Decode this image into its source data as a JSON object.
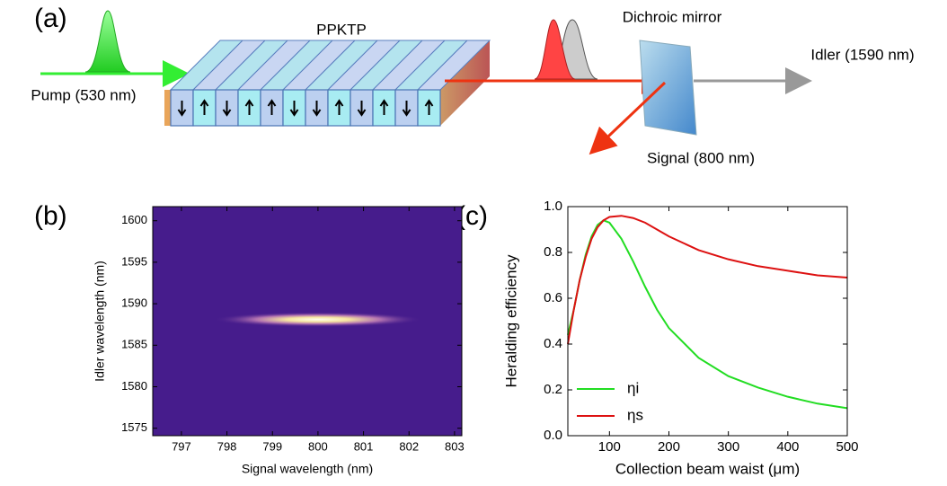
{
  "panel_labels": [
    "(a)",
    "(b)",
    "(c)"
  ],
  "diagram": {
    "crystal": "PPKTP",
    "pump": "Pump (530 nm)",
    "mirror": "Dichroic mirror",
    "idler": "Idler (1590 nm)",
    "signal": "Signal (800 nm)"
  },
  "chart_data": [
    {
      "type": "heatmap",
      "xlabel": "Signal wavelength (nm)",
      "ylabel": "Idler wavelength (nm)",
      "xlim": [
        796.37,
        803.16
      ],
      "xticks": [
        797,
        798,
        799,
        800,
        801,
        802,
        803
      ],
      "ylim": [
        1574.1,
        1601.7
      ],
      "yticks": [
        1575,
        1580,
        1585,
        1590,
        1595,
        1600
      ],
      "color": "#461c8c",
      "peak_x": 800,
      "peak_y": 1588.1,
      "spot_width": 2.3,
      "spot_height": 0.45
    },
    {
      "type": "line",
      "xlabel": "Collection beam waist (μm)",
      "ylabel": "Heralding efficiency",
      "xlim": [
        30,
        500
      ],
      "xticks": [
        100,
        200,
        300,
        400,
        500
      ],
      "ylim": [
        0,
        1
      ],
      "yticks": [
        {
          "value": 0,
          "label": "0.0"
        },
        {
          "value": 0.2,
          "label": "0.2"
        },
        {
          "value": 0.4,
          "label": "0.4"
        },
        {
          "value": 0.6,
          "label": "0.6"
        },
        {
          "value": 0.8,
          "label": "0.8"
        },
        {
          "value": 1,
          "label": "1.0"
        }
      ],
      "legend": "lower left",
      "x": [
        30,
        40,
        50,
        60,
        70,
        80,
        90,
        100,
        120,
        140,
        160,
        180,
        200,
        250,
        300,
        350,
        400,
        450,
        500
      ],
      "series": [
        {
          "name": "ηi",
          "color": "#22dd22",
          "values": [
            0.44,
            0.55,
            0.68,
            0.79,
            0.87,
            0.92,
            0.94,
            0.93,
            0.86,
            0.76,
            0.65,
            0.55,
            0.47,
            0.34,
            0.26,
            0.21,
            0.17,
            0.14,
            0.12
          ]
        },
        {
          "name": "ηs",
          "color": "#dd1111",
          "values": [
            0.4,
            0.55,
            0.68,
            0.78,
            0.86,
            0.91,
            0.94,
            0.955,
            0.96,
            0.95,
            0.93,
            0.9,
            0.87,
            0.81,
            0.77,
            0.74,
            0.72,
            0.7,
            0.69
          ]
        }
      ]
    }
  ]
}
